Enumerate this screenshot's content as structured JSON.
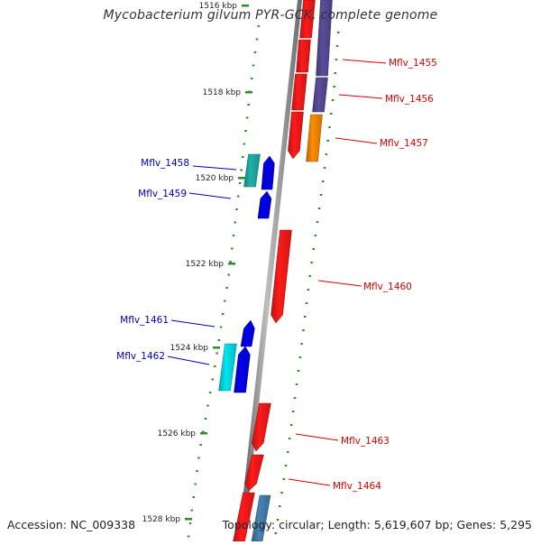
{
  "title": "Mycobacterium gilvum PYR-GCK, complete genome",
  "accession": "Accession: NC_009338",
  "topology": "Topology: circular; Length: 5,619,607 bp; Genes: 5,295",
  "colors": {
    "backbone": "#808080",
    "tick": "#2e8b2e",
    "forward_label": "#0000c0",
    "reverse_label": "#dd0000"
  },
  "scale_labels": [
    "1516 kbp",
    "1518 kbp",
    "1520 kbp",
    "1522 kbp",
    "1524 kbp",
    "1526 kbp",
    "1528 kbp"
  ],
  "genes": [
    {
      "label": "",
      "color": "#ff1a1a"
    },
    {
      "label": "",
      "color": "#5a4e9c"
    },
    {
      "label": "Mflv_1455",
      "color": "#ff1a1a"
    },
    {
      "label": "Mflv_1456",
      "color": "#ff1a1a"
    },
    {
      "label": "Mflv_1457",
      "color": "#ff8c00"
    },
    {
      "label": "",
      "color": "#ff1a1a"
    },
    {
      "label": "",
      "color": "#5a4e9c"
    },
    {
      "label": "Mflv_1458",
      "color": "#20b2aa"
    },
    {
      "label": "",
      "color": "#0000ee"
    },
    {
      "label": "Mflv_1459",
      "color": "#0000ee"
    },
    {
      "label": "Mflv_1460",
      "color": "#ff1a1a"
    },
    {
      "label": "Mflv_1461",
      "color": "#0000ee"
    },
    {
      "label": "Mflv_1462",
      "color": "#00e5ee"
    },
    {
      "label": "",
      "color": "#0000ee"
    },
    {
      "label": "Mflv_1463",
      "color": "#ff1a1a"
    },
    {
      "label": "Mflv_1464",
      "color": "#ff1a1a"
    },
    {
      "label": "",
      "color": "#ff1a1a"
    },
    {
      "label": "",
      "color": "#4682b4"
    }
  ]
}
